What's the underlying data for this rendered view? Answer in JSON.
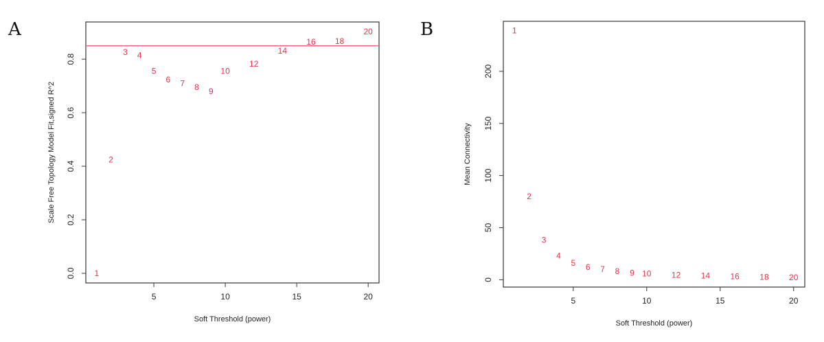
{
  "panels": [
    {
      "letter": "A"
    },
    {
      "letter": "B"
    }
  ],
  "chart_data": [
    {
      "type": "scatter",
      "title": "",
      "xlabel": "Soft Threshold (power)",
      "ylabel": "Scale Free Topology Model Fit,signed R^2",
      "xlim": [
        0.24,
        20.76
      ],
      "ylim": [
        -0.036,
        0.939
      ],
      "xticks": [
        5,
        10,
        15,
        20
      ],
      "yticks": [
        0.0,
        0.2,
        0.4,
        0.6,
        0.8
      ],
      "ytick_labels": [
        "0.0",
        "0.2",
        "0.4",
        "0.6",
        "0.8"
      ],
      "hline": 0.85,
      "hline_color": "#f0606e",
      "point_color": "#e8304a",
      "labels": [
        "1",
        "2",
        "3",
        "4",
        "5",
        "6",
        "7",
        "8",
        "9",
        "10",
        "12",
        "14",
        "16",
        "18",
        "20"
      ],
      "x": [
        1,
        2,
        3,
        4,
        5,
        6,
        7,
        8,
        9,
        10,
        12,
        14,
        16,
        18,
        20
      ],
      "y": [
        0.0,
        0.424,
        0.826,
        0.815,
        0.756,
        0.723,
        0.71,
        0.695,
        0.68,
        0.756,
        0.782,
        0.831,
        0.864,
        0.867,
        0.903
      ]
    },
    {
      "type": "scatter",
      "title": "",
      "xlabel": "Soft Threshold (power)",
      "ylabel": "Mean Connectivity",
      "xlim": [
        0.24,
        20.76
      ],
      "ylim": [
        -7,
        248
      ],
      "xticks": [
        5,
        10,
        15,
        20
      ],
      "yticks": [
        0,
        50,
        100,
        150,
        200
      ],
      "ytick_labels": [
        "0",
        "50",
        "100",
        "150",
        "200"
      ],
      "point_color": "#e8304a",
      "labels": [
        "1",
        "2",
        "3",
        "4",
        "5",
        "6",
        "7",
        "8",
        "9",
        "10",
        "12",
        "14",
        "16",
        "18",
        "20"
      ],
      "x": [
        1,
        2,
        3,
        4,
        5,
        6,
        7,
        8,
        9,
        10,
        12,
        14,
        16,
        18,
        20
      ],
      "y": [
        239,
        80,
        38,
        23,
        16,
        12,
        10,
        8,
        6.6,
        6,
        4.6,
        4,
        3.3,
        2.6,
        2.2
      ]
    }
  ]
}
